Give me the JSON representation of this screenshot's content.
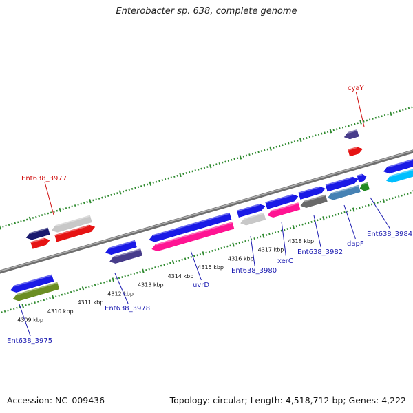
{
  "title": "Enterobacter sp. 638, complete genome",
  "footer": {
    "accession": "Accession: NC_009436",
    "topology": "Topology: circular; Length: 4,518,712 bp; Genes: 4,222"
  },
  "colors": {
    "backbone": "#8a8a8a",
    "tick": "#2f8a2f",
    "label_blue": "#1a1ab0",
    "label_red": "#d01010"
  },
  "scale": {
    "unit": "kbp",
    "labels": [
      "4309 kbp",
      "4310 kbp",
      "4311 kbp",
      "4312 kbp",
      "4313 kbp",
      "4314 kbp",
      "4315 kbp",
      "4316 kbp",
      "4317 kbp",
      "4318 kbp"
    ]
  },
  "features": [
    {
      "row": "r2",
      "start": -0.5,
      "end": 0.9,
      "strand": "-",
      "color": "#1a1ae6"
    },
    {
      "row": "r3",
      "start": -0.5,
      "end": 1.0,
      "strand": "-",
      "color": "#6b8e23"
    },
    {
      "row": "f3",
      "start": 0.45,
      "end": 1.2,
      "strand": "-",
      "color": "#1a1a6e"
    },
    {
      "row": "f3",
      "start": 1.3,
      "end": 2.6,
      "strand": "-",
      "color": "#c8c8c8"
    },
    {
      "row": "f2",
      "start": 0.55,
      "end": 1.15,
      "strand": "+",
      "color": "#e61414"
    },
    {
      "row": "f2",
      "start": 1.35,
      "end": 2.65,
      "strand": "+",
      "color": "#e61414"
    },
    {
      "row": "r1",
      "start": 2.75,
      "end": 3.75,
      "strand": "-",
      "color": "#1a1ae6"
    },
    {
      "row": "r2",
      "start": 2.8,
      "end": 3.85,
      "strand": "-",
      "color": "#483d8b"
    },
    {
      "row": "r1",
      "start": 4.2,
      "end": 6.9,
      "strand": "-",
      "color": "#1a1ae6"
    },
    {
      "row": "r2",
      "start": 4.2,
      "end": 6.9,
      "strand": "-",
      "color": "#ff1493"
    },
    {
      "row": "r1",
      "start": 7.15,
      "end": 8.05,
      "strand": "+",
      "color": "#1a1ae6"
    },
    {
      "row": "r2",
      "start": 7.15,
      "end": 7.95,
      "strand": "-",
      "color": "#c8c8c8"
    },
    {
      "row": "r1",
      "start": 8.1,
      "end": 9.15,
      "strand": "+",
      "color": "#1a1ae6"
    },
    {
      "row": "r2",
      "start": 8.05,
      "end": 9.1,
      "strand": "-",
      "color": "#ff1493"
    },
    {
      "row": "r1",
      "start": 9.2,
      "end": 10.05,
      "strand": "+",
      "color": "#1a1ae6"
    },
    {
      "row": "r2",
      "start": 9.15,
      "end": 10.0,
      "strand": "-",
      "color": "#696969"
    },
    {
      "row": "r1",
      "start": 10.1,
      "end": 11.15,
      "strand": "+",
      "color": "#1a1ae6"
    },
    {
      "row": "r2",
      "start": 10.05,
      "end": 11.1,
      "strand": "-",
      "color": "#4682b4"
    },
    {
      "row": "r1",
      "start": 11.15,
      "end": 11.42,
      "strand": "+",
      "color": "#1a1ae6"
    },
    {
      "row": "r2",
      "start": 11.12,
      "end": 11.4,
      "strand": "-",
      "color": "#228b22"
    },
    {
      "row": "f1",
      "start": 11.1,
      "end": 11.55,
      "strand": "-",
      "color": "#483d8b"
    },
    {
      "row": "f2",
      "start": 11.1,
      "end": 11.55,
      "strand": "+",
      "color": "#e61414"
    },
    {
      "row": "r1",
      "start": 12.0,
      "end": 13.5,
      "strand": "-",
      "color": "#1a1ae6"
    },
    {
      "row": "r2",
      "start": 12.0,
      "end": 13.5,
      "strand": "-",
      "color": "#00bfff"
    }
  ],
  "gene_labels": [
    {
      "text": "Ent638_3977",
      "color": "#d01010",
      "anchor": [
        78,
        312
      ],
      "pos": [
        31,
        262
      ]
    },
    {
      "text": "cyaY",
      "color": "#d01010",
      "anchor": [
        529,
        184
      ],
      "pos": [
        505,
        131
      ]
    },
    {
      "text": "Ent638_3975",
      "color": "#1a1ab0",
      "anchor": [
        28,
        442
      ],
      "pos": [
        10,
        498
      ]
    },
    {
      "text": "Ent638_3978",
      "color": "#1a1ab0",
      "anchor": [
        167,
        397
      ],
      "pos": [
        152,
        451
      ]
    },
    {
      "text": "uvrD",
      "color": "#1a1ab0",
      "anchor": [
        277,
        364
      ],
      "pos": [
        280,
        417
      ]
    },
    {
      "text": "Ent638_3980",
      "color": "#1a1ab0",
      "anchor": [
        364,
        343
      ],
      "pos": [
        336,
        396
      ]
    },
    {
      "text": "xerC",
      "color": "#1a1ab0",
      "anchor": [
        409,
        322
      ],
      "pos": [
        403,
        382
      ]
    },
    {
      "text": "Ent638_3982",
      "color": "#1a1ab0",
      "anchor": [
        456,
        313
      ],
      "pos": [
        432,
        369
      ]
    },
    {
      "text": "dapF",
      "color": "#1a1ab0",
      "anchor": [
        500,
        298
      ],
      "pos": [
        504,
        357
      ]
    },
    {
      "text": "Ent638_3984",
      "color": "#1a1ab0",
      "anchor": [
        538,
        287
      ],
      "pos": [
        533,
        343
      ]
    }
  ]
}
